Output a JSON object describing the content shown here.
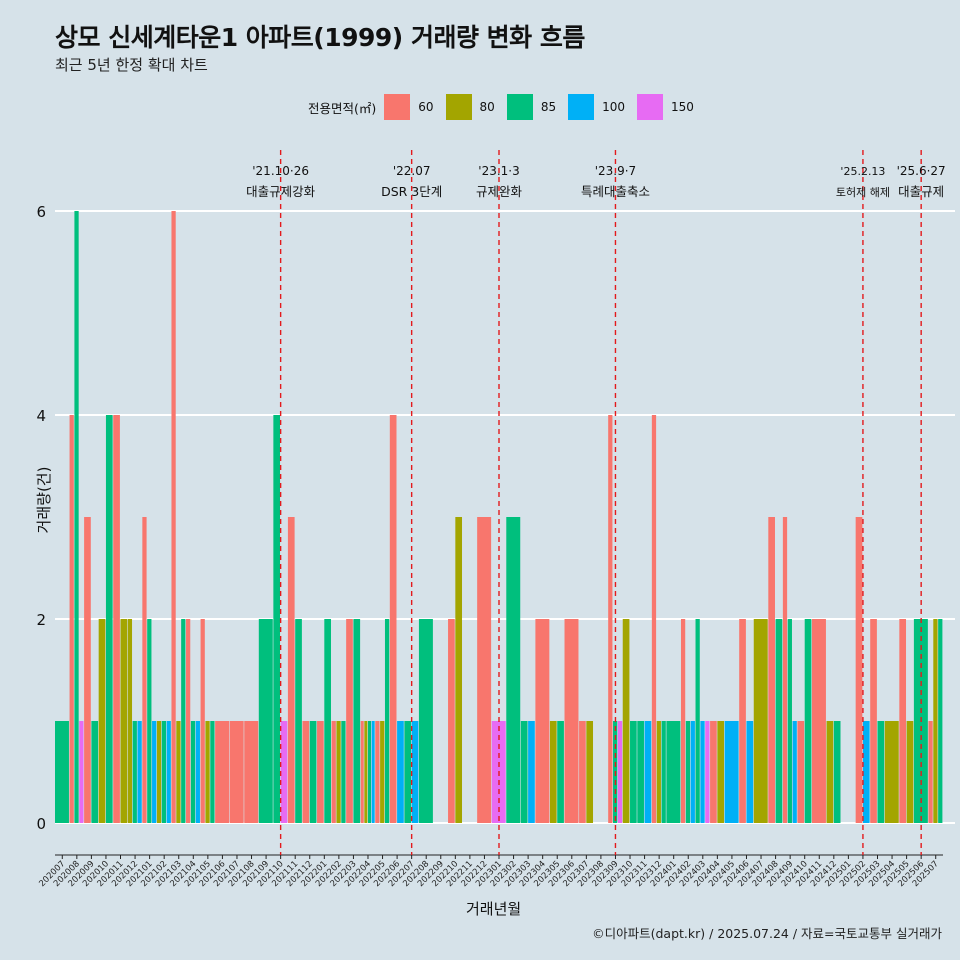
{
  "title": "상모 신세계타운1 아파트(1999) 거래량 변화 흐름",
  "subtitle": "최근 5년 한정 확대 차트",
  "caption": "©디아파트(dapt.kr) / 2025.07.24 / 자료=국토교통부 실거래가",
  "legend": {
    "title": "전용면적(㎡)",
    "items": [
      {
        "label": "60",
        "color": "#f8766d"
      },
      {
        "label": "80",
        "color": "#a3a500"
      },
      {
        "label": "85",
        "color": "#00bf7d"
      },
      {
        "label": "100",
        "color": "#00b0f6"
      },
      {
        "label": "150",
        "color": "#e76bf3"
      }
    ]
  },
  "chart_data": {
    "type": "bar",
    "xlabel": "거래년월",
    "ylabel": "거래량(건)",
    "ylim": [
      0,
      6
    ],
    "yticks": [
      0,
      2,
      4,
      6
    ],
    "grid": true,
    "legend_position": "top",
    "categories": [
      "202007",
      "202008",
      "202009",
      "202010",
      "202011",
      "202012",
      "202101",
      "202102",
      "202103",
      "202104",
      "202105",
      "202106",
      "202107",
      "202108",
      "202109",
      "202110",
      "202111",
      "202112",
      "202201",
      "202202",
      "202203",
      "202204",
      "202205",
      "202206",
      "202207",
      "202208",
      "202209",
      "202210",
      "202211",
      "202212",
      "202301",
      "202302",
      "202303",
      "202304",
      "202305",
      "202306",
      "202307",
      "202308",
      "202309",
      "202310",
      "202311",
      "202312",
      "202401",
      "202402",
      "202403",
      "202404",
      "202405",
      "202406",
      "202407",
      "202408",
      "202409",
      "202410",
      "202411",
      "202412",
      "202501",
      "202502",
      "202503",
      "202504",
      "202505",
      "202506",
      "202507"
    ],
    "series": [
      {
        "name": "60",
        "values": [
          0,
          4,
          3,
          0,
          4,
          0,
          3,
          0,
          6,
          2,
          2,
          1,
          1,
          1,
          0,
          0,
          3,
          1,
          1,
          1,
          2,
          1,
          1,
          4,
          0,
          0,
          0,
          2,
          0,
          3,
          0,
          0,
          0,
          2,
          0,
          2,
          1,
          0,
          4,
          0,
          0,
          4,
          0,
          2,
          0,
          1,
          0,
          2,
          0,
          3,
          3,
          1,
          2,
          0,
          0,
          3,
          2,
          0,
          2,
          0,
          1
        ]
      },
      {
        "name": "80",
        "values": [
          0,
          0,
          0,
          2,
          2,
          2,
          0,
          1,
          1,
          0,
          1,
          0,
          0,
          0,
          0,
          0,
          0,
          0,
          0,
          1,
          0,
          1,
          1,
          0,
          0,
          0,
          0,
          3,
          0,
          0,
          0,
          0,
          0,
          0,
          1,
          0,
          1,
          0,
          0,
          2,
          0,
          1,
          0,
          0,
          0,
          1,
          0,
          0,
          2,
          0,
          0,
          0,
          0,
          1,
          0,
          0,
          0,
          1,
          1,
          0,
          2
        ]
      },
      {
        "name": "85",
        "values": [
          1,
          6,
          1,
          4,
          0,
          1,
          2,
          1,
          2,
          1,
          1,
          0,
          0,
          0,
          2,
          4,
          2,
          1,
          2,
          1,
          2,
          1,
          2,
          0,
          1,
          2,
          0,
          0,
          0,
          0,
          0,
          3,
          1,
          0,
          1,
          0,
          0,
          0,
          1,
          1,
          1,
          1,
          1,
          1,
          2,
          0,
          0,
          0,
          0,
          2,
          2,
          2,
          0,
          1,
          0,
          0,
          1,
          0,
          0,
          2,
          2
        ]
      },
      {
        "name": "100",
        "values": [
          0,
          0,
          0,
          0,
          0,
          1,
          1,
          1,
          0,
          1,
          0,
          0,
          0,
          0,
          0,
          0,
          0,
          0,
          0,
          0,
          0,
          1,
          0,
          1,
          1,
          0,
          0,
          0,
          0,
          0,
          0,
          0,
          1,
          0,
          0,
          0,
          0,
          0,
          0,
          0,
          1,
          0,
          0,
          1,
          1,
          0,
          1,
          1,
          0,
          0,
          1,
          0,
          0,
          0,
          0,
          1,
          0,
          0,
          0,
          0,
          0
        ]
      },
      {
        "name": "150",
        "values": [
          0,
          1,
          0,
          0,
          0,
          0,
          0,
          0,
          0,
          0,
          0,
          0,
          0,
          0,
          0,
          1,
          0,
          0,
          0,
          0,
          0,
          0,
          0,
          0,
          0,
          0,
          0,
          0,
          0,
          0,
          1,
          0,
          0,
          0,
          0,
          0,
          0,
          0,
          1,
          0,
          0,
          0,
          0,
          0,
          1,
          0,
          0,
          0,
          0,
          0,
          0,
          0,
          0,
          0,
          0,
          0,
          0,
          0,
          0,
          0,
          0
        ]
      }
    ],
    "annotations": [
      {
        "date": "'21.10·26",
        "label": "대출규제강화",
        "x": "202110"
      },
      {
        "date": "'22.07",
        "label": "DSR 3단계",
        "x": "202207"
      },
      {
        "date": "'23.1·3",
        "label": "규제완화",
        "x": "202301"
      },
      {
        "date": "'23.9·7",
        "label": "특례대출축소",
        "x": "202309"
      },
      {
        "date": "'25.2.13",
        "label": "토허제 해제",
        "x": "202502"
      },
      {
        "date": "'25.6·27",
        "label": "대출규제",
        "x": "202506"
      }
    ]
  }
}
